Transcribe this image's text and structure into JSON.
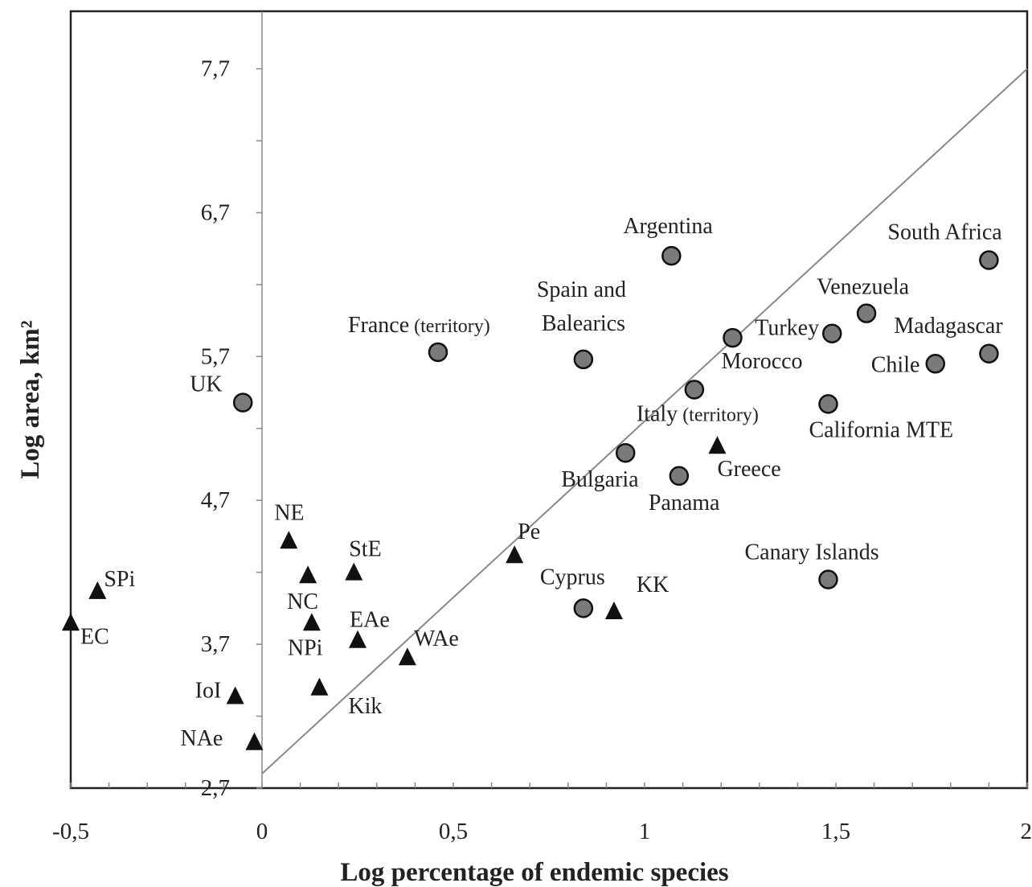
{
  "chart_data": {
    "type": "scatter",
    "xlabel": "Log percentage of endemic species",
    "ylabel": "Log area, km²",
    "xlim": [
      -0.5,
      2
    ],
    "ylim": [
      2.7,
      8.1
    ],
    "x_ticks": [
      {
        "value": -0.5,
        "label": "-0,5"
      },
      {
        "value": 0,
        "label": "0"
      },
      {
        "value": 0.5,
        "label": "0,5"
      },
      {
        "value": 1,
        "label": "1"
      },
      {
        "value": 1.5,
        "label": "1,5"
      },
      {
        "value": 2,
        "label": "2"
      }
    ],
    "y_ticks": [
      {
        "value": 2.7,
        "label": "2,7"
      },
      {
        "value": 3.7,
        "label": "3,7"
      },
      {
        "value": 4.7,
        "label": "4,7"
      },
      {
        "value": 5.7,
        "label": "5,7"
      },
      {
        "value": 6.7,
        "label": "6,7"
      },
      {
        "value": 7.7,
        "label": "7,7"
      }
    ],
    "y_minor_step": 0.5,
    "x_minor_step": 0.1,
    "reference_line": {
      "from": [
        0,
        2.8
      ],
      "to": [
        2,
        7.7
      ]
    },
    "series": [
      {
        "marker": "circle",
        "points": [
          {
            "x": 1.07,
            "y": 6.4,
            "label": "Argentina"
          },
          {
            "x": 1.9,
            "y": 6.37,
            "label": "South Africa"
          },
          {
            "x": 1.58,
            "y": 6.0,
            "label": "Venezuela"
          },
          {
            "x": 1.49,
            "y": 5.86,
            "label": "Turkey"
          },
          {
            "x": 1.9,
            "y": 5.72,
            "label": "Madagascar"
          },
          {
            "x": 1.76,
            "y": 5.65,
            "label": "Chile"
          },
          {
            "x": 1.23,
            "y": 5.83,
            "label": "Morocco"
          },
          {
            "x": 0.84,
            "y": 5.68,
            "label": "Spain and Balearics"
          },
          {
            "x": 0.46,
            "y": 5.73,
            "label": "France",
            "label_sub": "(territory)"
          },
          {
            "x": -0.05,
            "y": 5.38,
            "label": "UK"
          },
          {
            "x": 1.13,
            "y": 5.47,
            "label": "Italy",
            "label_sub": "(territory)"
          },
          {
            "x": 1.48,
            "y": 5.37,
            "label": "California MTE"
          },
          {
            "x": 0.95,
            "y": 5.03,
            "label": "Bulgaria"
          },
          {
            "x": 1.09,
            "y": 4.87,
            "label": "Panama"
          },
          {
            "x": 1.48,
            "y": 4.15,
            "label": "Canary Islands"
          },
          {
            "x": 0.84,
            "y": 3.95,
            "label": "Cyprus"
          }
        ]
      },
      {
        "marker": "triangle",
        "points": [
          {
            "x": 1.19,
            "y": 5.08,
            "label": "Greece"
          },
          {
            "x": 0.07,
            "y": 4.42,
            "label": "NE"
          },
          {
            "x": 0.24,
            "y": 4.2,
            "label": "StE"
          },
          {
            "x": 0.12,
            "y": 4.18,
            "label": "NC"
          },
          {
            "x": 0.66,
            "y": 4.32,
            "label": "Pe"
          },
          {
            "x": -0.43,
            "y": 4.07,
            "label": "SPi"
          },
          {
            "x": -0.5,
            "y": 3.85,
            "label": "EC"
          },
          {
            "x": 0.13,
            "y": 3.85,
            "label": "NPi"
          },
          {
            "x": 0.25,
            "y": 3.73,
            "label": "EAe"
          },
          {
            "x": 0.38,
            "y": 3.61,
            "label": "WAe"
          },
          {
            "x": 0.92,
            "y": 3.93,
            "label": "KK"
          },
          {
            "x": 0.15,
            "y": 3.4,
            "label": "Kik"
          },
          {
            "x": -0.07,
            "y": 3.34,
            "label": "IoI"
          },
          {
            "x": -0.02,
            "y": 3.02,
            "label": "NAe"
          }
        ]
      }
    ],
    "grid": false,
    "legend": "none"
  }
}
